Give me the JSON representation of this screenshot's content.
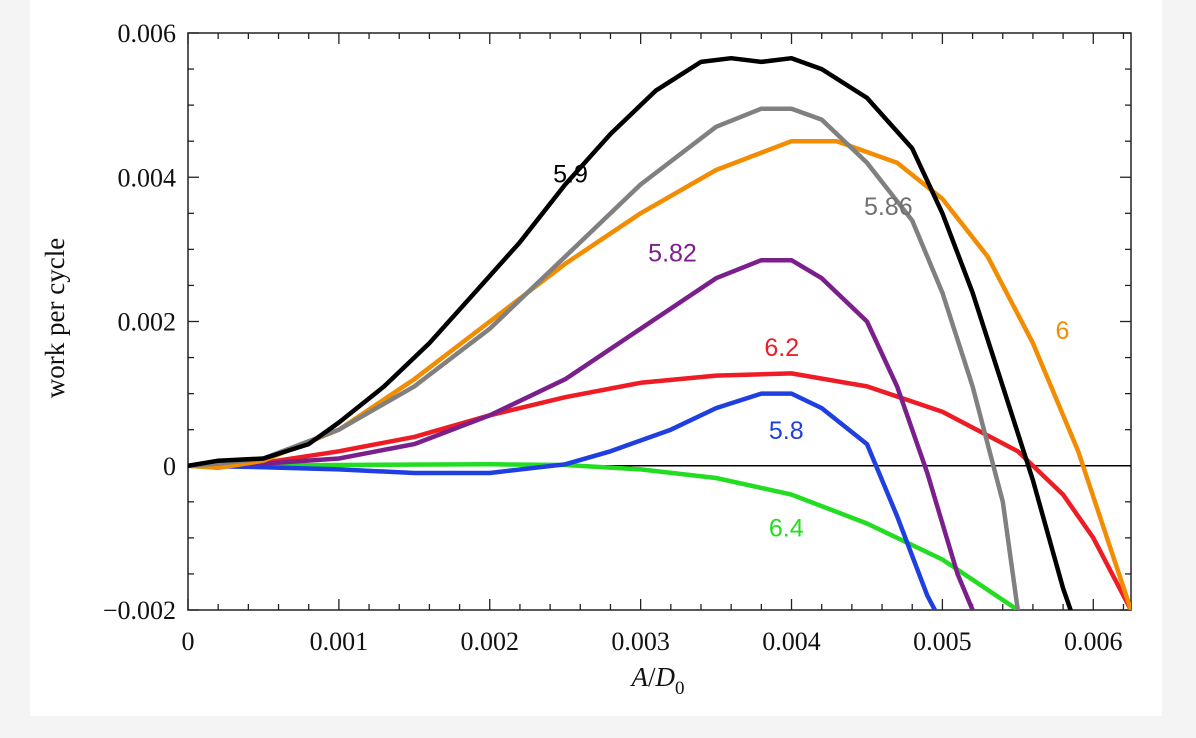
{
  "chart_data": {
    "type": "line",
    "title": "",
    "xlabel_italic_main": "A",
    "xlabel_sep": "/",
    "xlabel_italic_D": "D",
    "xlabel_sub": "0",
    "ylabel": "work per cycle",
    "xlim": [
      0,
      0.00625
    ],
    "ylim": [
      -0.002,
      0.006
    ],
    "xticks": [
      0,
      0.001,
      0.002,
      0.003,
      0.004,
      0.005,
      0.006
    ],
    "xtick_labels": [
      "0",
      "0.001",
      "0.002",
      "0.003",
      "0.004",
      "0.005",
      "0.006"
    ],
    "yticks": [
      -0.002,
      0,
      0.002,
      0.004,
      0.006
    ],
    "ytick_labels": [
      "−0.002",
      "0",
      "0.002",
      "0.004",
      "0.006"
    ],
    "zero_line": true,
    "grid": false,
    "series": [
      {
        "name": "5.9",
        "color": "#000000",
        "x": [
          0,
          0.0002,
          0.0005,
          0.0008,
          0.001,
          0.0013,
          0.0016,
          0.0019,
          0.0022,
          0.0025,
          0.0028,
          0.0031,
          0.0034,
          0.0036,
          0.0038,
          0.004,
          0.0042,
          0.0045,
          0.0048,
          0.005,
          0.0052,
          0.0054,
          0.0056,
          0.0058,
          0.00585
        ],
        "y": [
          0,
          7e-05,
          0.0001,
          0.0003,
          0.0006,
          0.0011,
          0.0017,
          0.0024,
          0.0031,
          0.0039,
          0.0046,
          0.0052,
          0.0056,
          0.00565,
          0.0056,
          0.00565,
          0.0055,
          0.0051,
          0.0044,
          0.0035,
          0.0024,
          0.0011,
          -0.0002,
          -0.0017,
          -0.002
        ]
      },
      {
        "name": "5.86",
        "color": "#808080",
        "x": [
          0,
          0.0002,
          0.0005,
          0.001,
          0.0015,
          0.002,
          0.0025,
          0.003,
          0.0035,
          0.0038,
          0.004,
          0.0042,
          0.0045,
          0.0048,
          0.005,
          0.0052,
          0.0054,
          0.0055
        ],
        "y": [
          0,
          3e-05,
          0.0001,
          0.0005,
          0.0011,
          0.0019,
          0.0029,
          0.0039,
          0.0047,
          0.00495,
          0.00495,
          0.0048,
          0.0042,
          0.0034,
          0.0024,
          0.0011,
          -0.0005,
          -0.002
        ]
      },
      {
        "name": "6",
        "color": "#f28c00",
        "x": [
          0,
          0.0002,
          0.0005,
          0.001,
          0.0015,
          0.002,
          0.0025,
          0.003,
          0.0035,
          0.004,
          0.0043,
          0.0047,
          0.005,
          0.0053,
          0.0056,
          0.0059,
          0.00625
        ],
        "y": [
          0,
          -3e-05,
          7e-05,
          0.0005,
          0.0012,
          0.002,
          0.0028,
          0.0035,
          0.0041,
          0.0045,
          0.0045,
          0.0042,
          0.0037,
          0.0029,
          0.0017,
          0.0002,
          -0.002
        ]
      },
      {
        "name": "5.82",
        "color": "#7b1f8c",
        "x": [
          0,
          0.0005,
          0.001,
          0.0015,
          0.002,
          0.0025,
          0.003,
          0.0035,
          0.0038,
          0.004,
          0.0042,
          0.0045,
          0.0047,
          0.0049,
          0.0051,
          0.0052
        ],
        "y": [
          0,
          3e-05,
          0.0001,
          0.0003,
          0.0007,
          0.0012,
          0.0019,
          0.0026,
          0.00285,
          0.00285,
          0.0026,
          0.002,
          0.0011,
          -0.0001,
          -0.0015,
          -0.002
        ]
      },
      {
        "name": "6.2",
        "color": "#ee1c25",
        "x": [
          0,
          0.0005,
          0.001,
          0.0015,
          0.002,
          0.0025,
          0.003,
          0.0035,
          0.004,
          0.0045,
          0.005,
          0.0055,
          0.0058,
          0.006,
          0.00625
        ],
        "y": [
          0,
          4e-05,
          0.0002,
          0.0004,
          0.0007,
          0.00095,
          0.00115,
          0.00125,
          0.00128,
          0.0011,
          0.00075,
          0.0002,
          -0.0004,
          -0.001,
          -0.002
        ]
      },
      {
        "name": "5.8",
        "color": "#1f3fe0",
        "x": [
          0,
          0.0005,
          0.001,
          0.0015,
          0.002,
          0.0025,
          0.0028,
          0.0032,
          0.0035,
          0.0038,
          0.004,
          0.0042,
          0.0045,
          0.0047,
          0.0049,
          0.00495
        ],
        "y": [
          0,
          -2e-05,
          -5e-05,
          -0.0001,
          -0.0001,
          2e-05,
          0.0002,
          0.0005,
          0.0008,
          0.001,
          0.001,
          0.0008,
          0.0003,
          -0.0007,
          -0.0018,
          -0.002
        ]
      },
      {
        "name": "6.4",
        "color": "#22dd22",
        "x": [
          0,
          0.001,
          0.002,
          0.0025,
          0.003,
          0.0035,
          0.004,
          0.0045,
          0.005,
          0.0055
        ],
        "y": [
          0,
          1e-05,
          2e-05,
          1e-05,
          -5e-05,
          -0.00017,
          -0.0004,
          -0.0008,
          -0.0013,
          -0.002
        ]
      }
    ],
    "annotations": [
      {
        "text": "5.9",
        "color": "#000000",
        "x": 0.00242,
        "y": 0.00393
      },
      {
        "text": "5.86",
        "color": "#707070",
        "x": 0.00448,
        "y": 0.00348
      },
      {
        "text": "6",
        "color": "#f28c00",
        "x": 0.00575,
        "y": 0.00176
      },
      {
        "text": "5.82",
        "color": "#7b1f8c",
        "x": 0.00305,
        "y": 0.00283
      },
      {
        "text": "6.2",
        "color": "#ee1c25",
        "x": 0.00382,
        "y": 0.00152
      },
      {
        "text": "5.8",
        "color": "#1f3fe0",
        "x": 0.00385,
        "y": 0.00037
      },
      {
        "text": "6.4",
        "color": "#22dd22",
        "x": 0.00385,
        "y": -0.00098
      }
    ]
  }
}
